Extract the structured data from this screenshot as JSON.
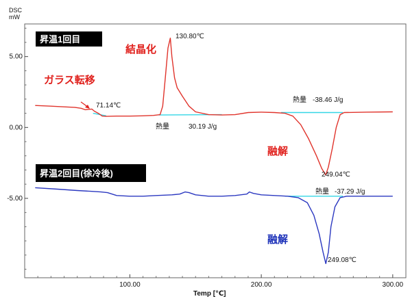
{
  "chart_data": {
    "type": "line",
    "xlabel": "Temp [℃]",
    "ylabel_top": "DSC",
    "ylabel_unit": "mW",
    "xlim": [
      20,
      310
    ],
    "ylim": [
      -10.6,
      7.3
    ],
    "x_ticks": [
      100,
      200,
      300
    ],
    "x_tick_labels": [
      "100.00",
      "200.00",
      "300.00"
    ],
    "y_ticks": [
      5,
      0,
      -5
    ],
    "y_tick_labels": [
      "5.00",
      "0.00",
      "-5.00"
    ],
    "grid": false,
    "series": [
      {
        "name": "昇温1回目",
        "color": "#e0332b",
        "points": [
          [
            28,
            1.55
          ],
          [
            40,
            1.5
          ],
          [
            50,
            1.45
          ],
          [
            58,
            1.42
          ],
          [
            63,
            1.35
          ],
          [
            66,
            1.25
          ],
          [
            69,
            1.28
          ],
          [
            71.14,
            1.3
          ],
          [
            73,
            1.15
          ],
          [
            76,
            1.0
          ],
          [
            79,
            0.8
          ],
          [
            82,
            0.78
          ],
          [
            90,
            0.8
          ],
          [
            100,
            0.8
          ],
          [
            110,
            0.82
          ],
          [
            118,
            0.85
          ],
          [
            123,
            0.9
          ],
          [
            125,
            1.5
          ],
          [
            127,
            3.5
          ],
          [
            129,
            5.6
          ],
          [
            130.8,
            6.3
          ],
          [
            132,
            5.0
          ],
          [
            134,
            3.5
          ],
          [
            136,
            2.8
          ],
          [
            140,
            2.2
          ],
          [
            145,
            1.5
          ],
          [
            150,
            1.1
          ],
          [
            160,
            0.9
          ],
          [
            170,
            0.88
          ],
          [
            180,
            0.9
          ],
          [
            190,
            1.05
          ],
          [
            200,
            1.08
          ],
          [
            210,
            1.05
          ],
          [
            218,
            1.0
          ],
          [
            224,
            0.8
          ],
          [
            230,
            0.2
          ],
          [
            236,
            -0.8
          ],
          [
            242,
            -2.0
          ],
          [
            246,
            -2.9
          ],
          [
            249.04,
            -3.35
          ],
          [
            251,
            -2.8
          ],
          [
            254,
            -1.5
          ],
          [
            257,
            0.0
          ],
          [
            260,
            0.9
          ],
          [
            263,
            1.05
          ],
          [
            280,
            1.08
          ],
          [
            300,
            1.1
          ]
        ]
      },
      {
        "name": "昇温2回目(徐冷後)",
        "color": "#2a37c0",
        "points": [
          [
            28,
            -4.25
          ],
          [
            45,
            -4.35
          ],
          [
            60,
            -4.45
          ],
          [
            70,
            -4.5
          ],
          [
            78,
            -4.55
          ],
          [
            83,
            -4.6
          ],
          [
            90,
            -4.8
          ],
          [
            100,
            -4.85
          ],
          [
            110,
            -4.85
          ],
          [
            120,
            -4.8
          ],
          [
            132,
            -4.75
          ],
          [
            138,
            -4.7
          ],
          [
            142,
            -4.55
          ],
          [
            145,
            -4.6
          ],
          [
            150,
            -4.75
          ],
          [
            160,
            -4.85
          ],
          [
            170,
            -4.85
          ],
          [
            180,
            -4.8
          ],
          [
            189,
            -4.7
          ],
          [
            191,
            -4.55
          ],
          [
            194,
            -4.65
          ],
          [
            200,
            -4.75
          ],
          [
            210,
            -4.8
          ],
          [
            220,
            -4.85
          ],
          [
            228,
            -4.95
          ],
          [
            235,
            -5.3
          ],
          [
            240,
            -6.2
          ],
          [
            244,
            -7.5
          ],
          [
            247,
            -8.8
          ],
          [
            249.08,
            -9.6
          ],
          [
            251,
            -8.8
          ],
          [
            253,
            -7.0
          ],
          [
            256,
            -5.6
          ],
          [
            260,
            -4.95
          ],
          [
            265,
            -4.85
          ],
          [
            280,
            -4.85
          ],
          [
            300,
            -4.85
          ]
        ]
      }
    ],
    "baselines": [
      {
        "color": "#33d6e6",
        "points": [
          [
            72,
            1.0
          ],
          [
            82,
            0.82
          ]
        ]
      },
      {
        "color": "#33d6e6",
        "points": [
          [
            122,
            0.88
          ],
          [
            170,
            0.9
          ]
        ]
      },
      {
        "color": "#33d6e6",
        "points": [
          [
            215,
            1.05
          ],
          [
            262,
            1.05
          ]
        ]
      },
      {
        "color": "#33d6e6",
        "points": [
          [
            218,
            -4.85
          ],
          [
            262,
            -4.85
          ]
        ]
      }
    ],
    "labels": {
      "run1_box": "昇温1回目",
      "run2_box": "昇温2回目(徐冷後)",
      "glass_transition": "ガラス転移",
      "crystallization": "結晶化",
      "melting1": "融解",
      "melting2": "融解",
      "tg_temp": "71.14℃",
      "tc_temp": "130.80℃",
      "tm1_temp": "249.04℃",
      "tm2_temp": "249.08℃",
      "heat_label": "熱量",
      "heat_cryst_value": "30.19 J/g",
      "heat_melt1_value": "-38.46 J/g",
      "heat_melt2_value": "-37.29 J/g"
    }
  }
}
